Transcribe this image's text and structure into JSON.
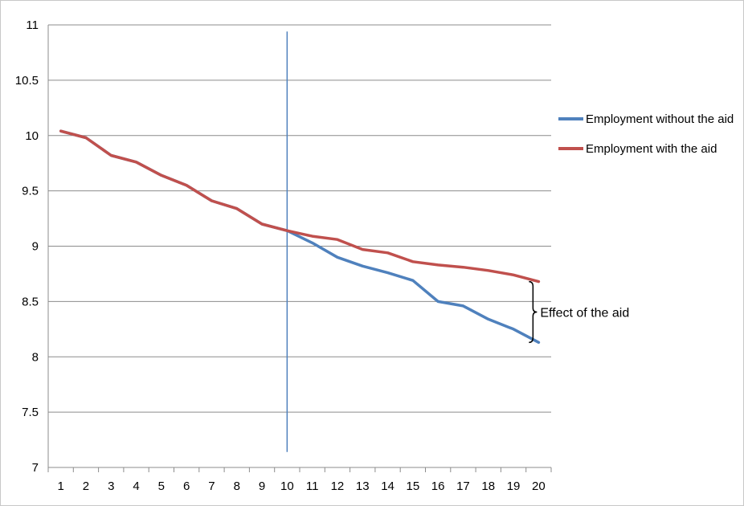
{
  "chart_data": {
    "type": "line",
    "title": "",
    "xlabel": "",
    "ylabel": "",
    "x": [
      1,
      2,
      3,
      4,
      5,
      6,
      7,
      8,
      9,
      10,
      11,
      12,
      13,
      14,
      15,
      16,
      17,
      18,
      19,
      20
    ],
    "x_tick_labels": [
      "1",
      "2",
      "3",
      "4",
      "5",
      "6",
      "7",
      "8",
      "9",
      "10",
      "11",
      "12",
      "13",
      "14",
      "15",
      "16",
      "17",
      "18",
      "19",
      "20"
    ],
    "y_tick_labels": [
      "7",
      "7.5",
      "8",
      "8.5",
      "9",
      "9.5",
      "10",
      "10.5",
      "11"
    ],
    "y_ticks": [
      7,
      7.5,
      8,
      8.5,
      9,
      9.5,
      10,
      10.5,
      11
    ],
    "ylim": [
      7,
      11
    ],
    "grid": "horizontal",
    "legend_position": "right",
    "series": [
      {
        "name": "Employment without the aid",
        "color": "#4f81bd",
        "values": [
          10.04,
          9.98,
          9.82,
          9.76,
          9.64,
          9.55,
          9.41,
          9.34,
          9.2,
          9.14,
          9.03,
          8.9,
          8.82,
          8.76,
          8.69,
          8.5,
          8.46,
          8.34,
          8.25,
          8.13
        ]
      },
      {
        "name": "Employment with the aid",
        "color": "#c0504d",
        "values": [
          10.04,
          9.98,
          9.82,
          9.76,
          9.64,
          9.55,
          9.41,
          9.34,
          9.2,
          9.14,
          9.09,
          9.06,
          8.97,
          8.94,
          8.86,
          8.83,
          8.81,
          8.78,
          8.74,
          8.68
        ]
      }
    ],
    "vertical_marker": {
      "x": 10,
      "y_from": 7.14,
      "y_to": 10.94,
      "color": "#4f81bd"
    },
    "annotation": {
      "text": "Effect of the aid",
      "x": 20,
      "y_from": 8.13,
      "y_to": 8.68
    }
  }
}
